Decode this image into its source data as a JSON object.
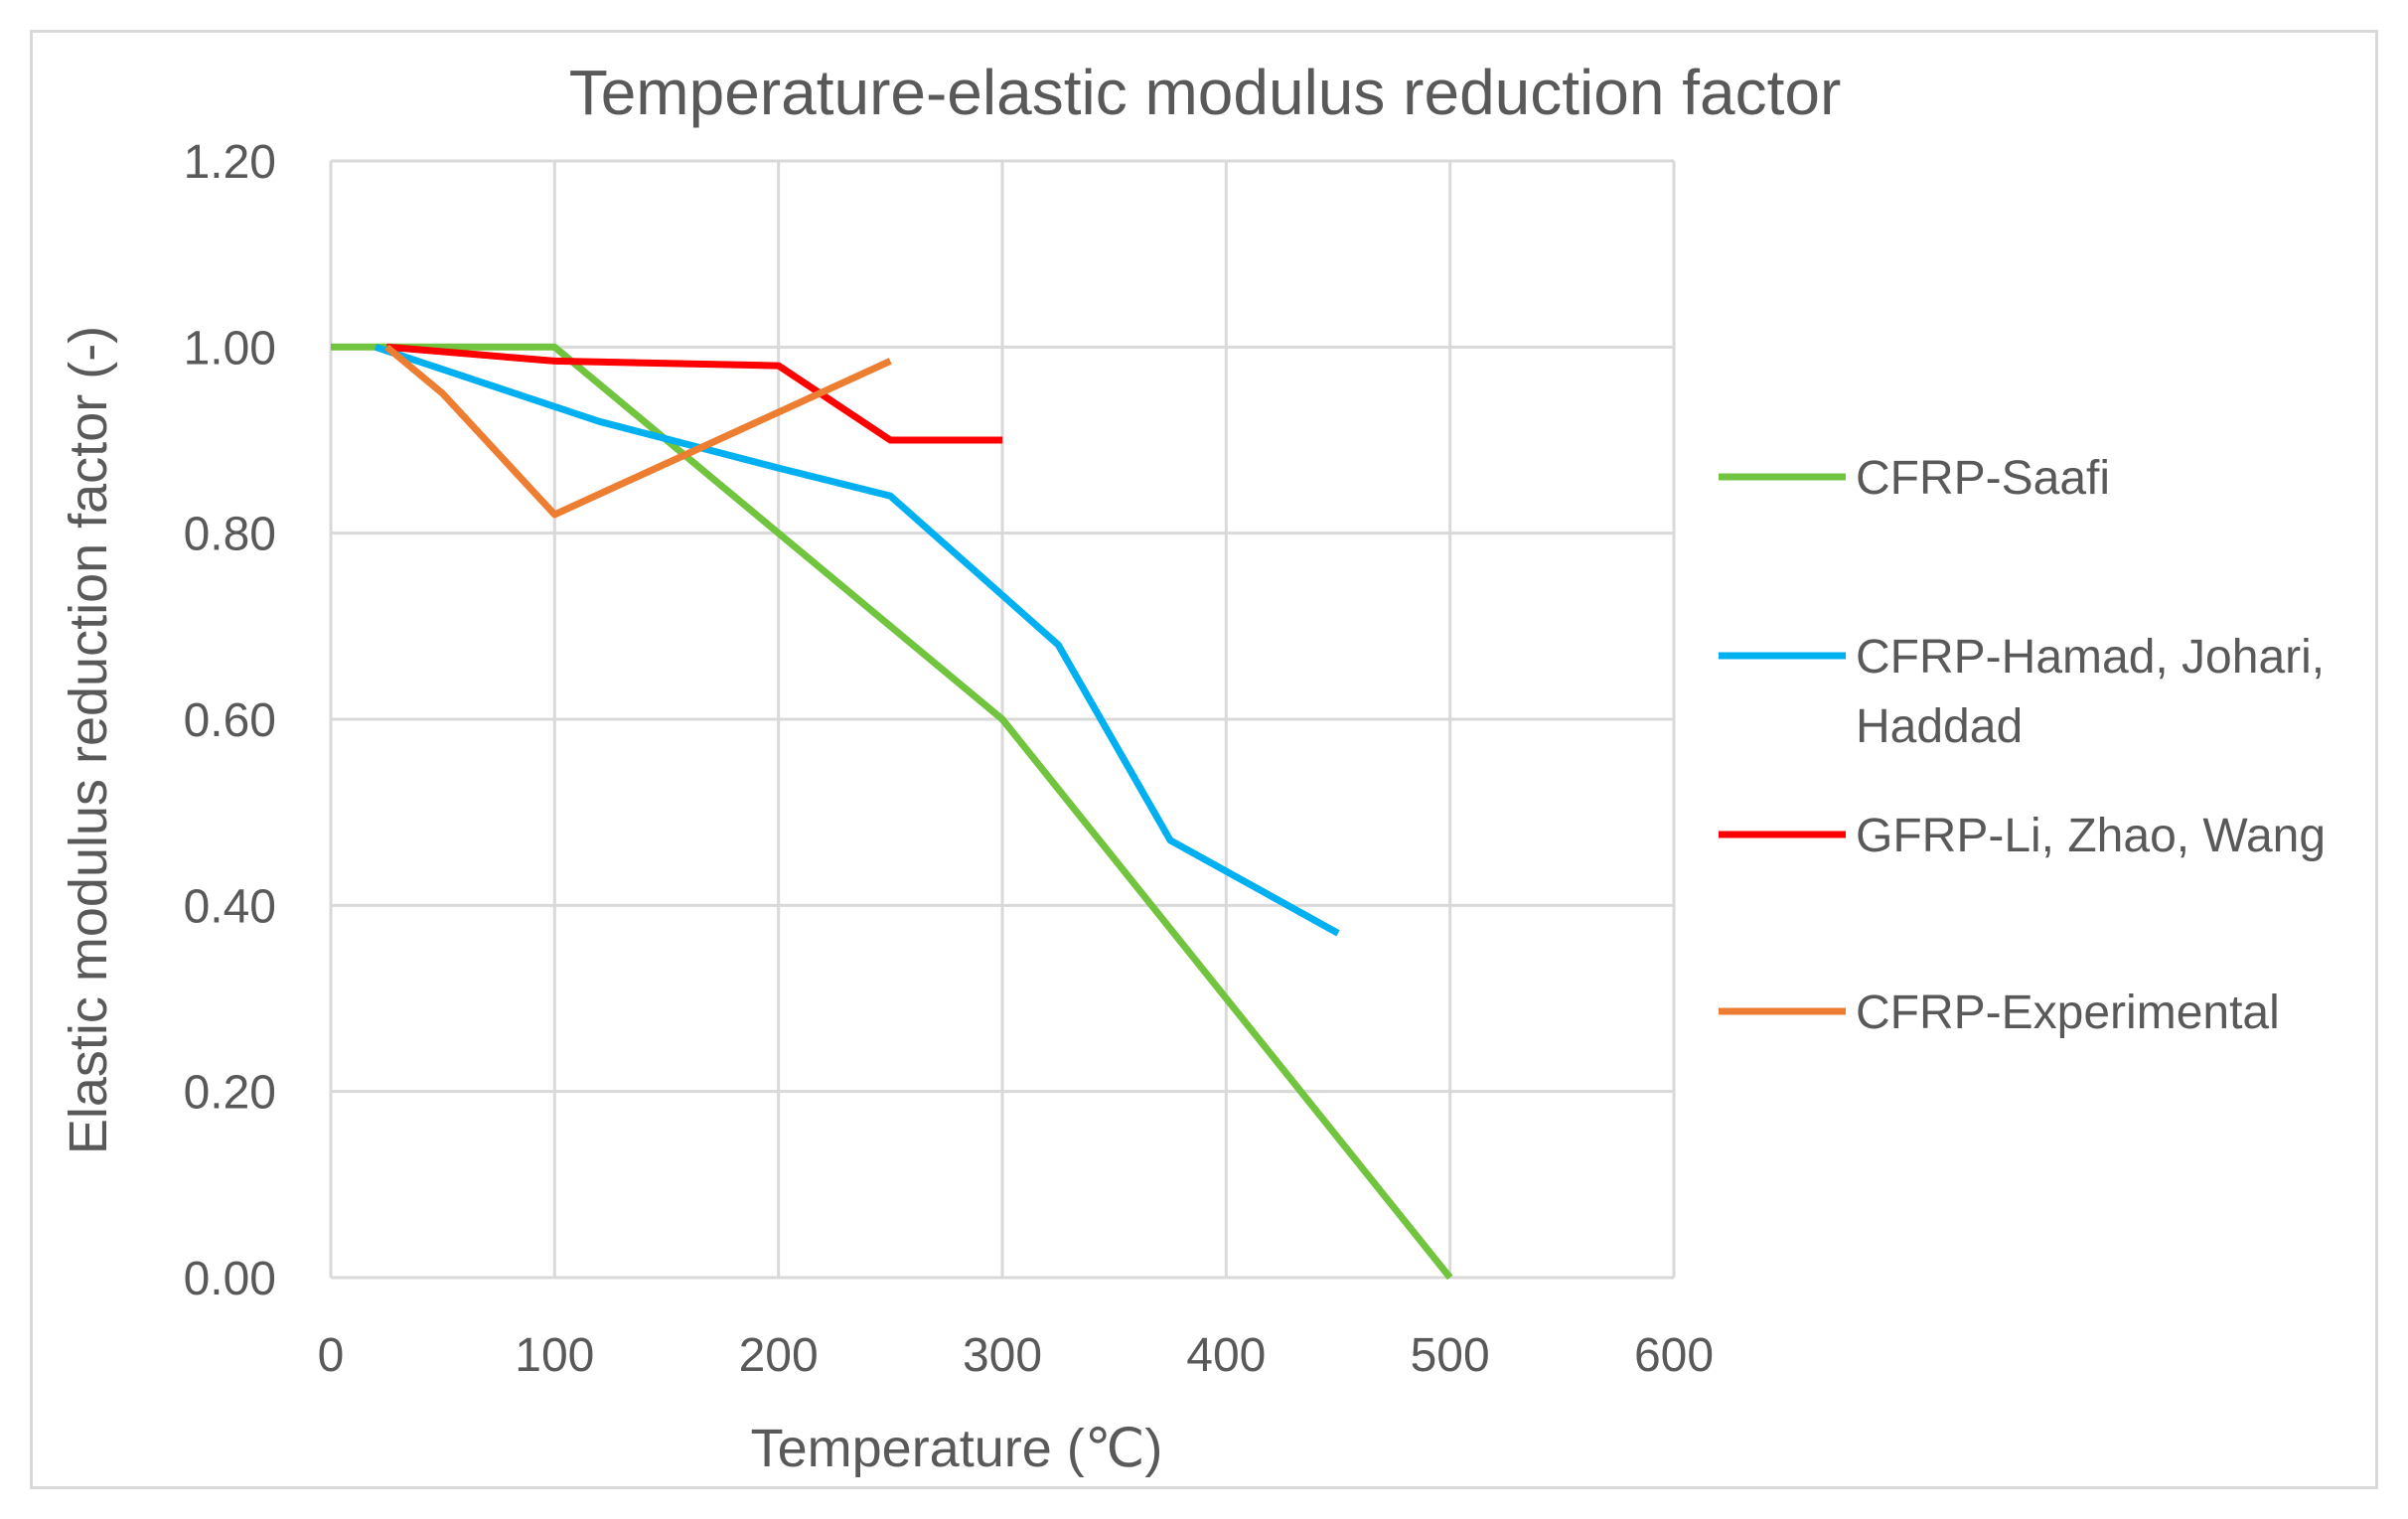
{
  "chart_data": {
    "type": "line",
    "title": "Temperature-elastic modulus reduction factor",
    "xlabel": "Temperature (℃)",
    "ylabel": "Elastic modulus reduction factor (-)",
    "xlim": [
      0,
      600
    ],
    "ylim": [
      0,
      1.2
    ],
    "x_ticks": [
      "0",
      "100",
      "200",
      "300",
      "400",
      "500",
      "600"
    ],
    "y_ticks": [
      "0.00",
      "0.20",
      "0.40",
      "0.60",
      "0.80",
      "1.00",
      "1.20"
    ],
    "grid": true,
    "legend_position": "right",
    "series": [
      {
        "name": "CFRP-Saafi",
        "color": "#70c43e",
        "legend_lines": [
          "CFRP-Saafi"
        ],
        "x": [
          0,
          100,
          300,
          500
        ],
        "y": [
          1.0,
          1.0,
          0.6,
          0.0
        ]
      },
      {
        "name": "CFRP-Hamad, Johari, Haddad",
        "color": "#00b0f0",
        "legend_lines": [
          "CFRP-Hamad, Johari,",
          "Haddad"
        ],
        "x": [
          20,
          120,
          200,
          250,
          325,
          375,
          450
        ],
        "y": [
          1.0,
          0.92,
          0.87,
          0.84,
          0.68,
          0.47,
          0.37
        ]
      },
      {
        "name": "GFRP-Li, Zhao, Wang",
        "color": "#ff0000",
        "legend_lines": [
          "GFRP-Li, Zhao, Wang"
        ],
        "x": [
          25,
          100,
          200,
          250,
          300
        ],
        "y": [
          1.0,
          0.985,
          0.98,
          0.9,
          0.9
        ]
      },
      {
        "name": "CFRP-Experimental",
        "color": "#ed7d31",
        "legend_lines": [
          "CFRP-Experimental"
        ],
        "x": [
          25,
          50,
          100,
          200,
          250
        ],
        "y": [
          1.0,
          0.95,
          0.82,
          0.93,
          0.985
        ]
      }
    ]
  }
}
